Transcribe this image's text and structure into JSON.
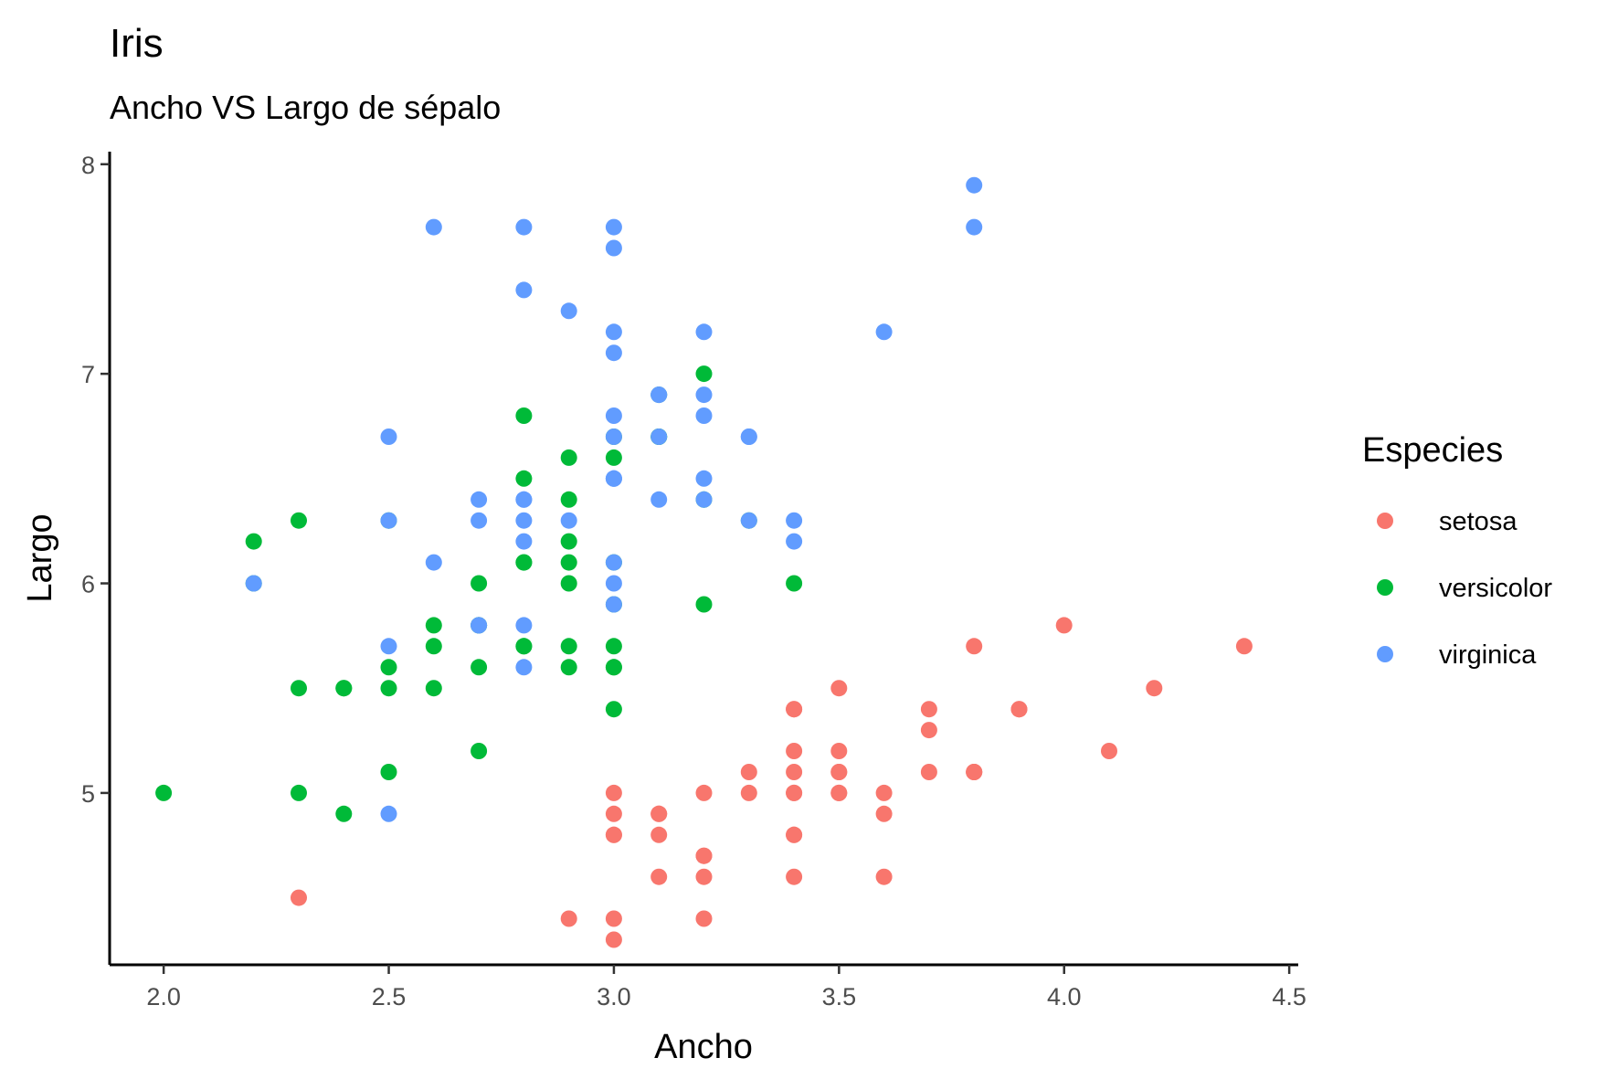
{
  "chart_data": {
    "type": "scatter",
    "title": "Iris",
    "subtitle": "Ancho VS Largo de sépalo",
    "xlabel": "Ancho",
    "ylabel": "Largo",
    "xlim": [
      1.88,
      4.52
    ],
    "ylim": [
      4.18,
      8.06
    ],
    "x_ticks": [
      {
        "value": 2.0,
        "label": "2.0"
      },
      {
        "value": 2.5,
        "label": "2.5"
      },
      {
        "value": 3.0,
        "label": "3.0"
      },
      {
        "value": 3.5,
        "label": "3.5"
      },
      {
        "value": 4.0,
        "label": "4.0"
      },
      {
        "value": 4.5,
        "label": "4.5"
      }
    ],
    "y_ticks": [
      {
        "value": 5,
        "label": "5"
      },
      {
        "value": 6,
        "label": "6"
      },
      {
        "value": 7,
        "label": "7"
      },
      {
        "value": 8,
        "label": "8"
      }
    ],
    "grid": false,
    "legend": {
      "title": "Especies",
      "placement": "right"
    },
    "series": [
      {
        "name": "setosa",
        "color": "#F8766D",
        "points": [
          [
            3.5,
            5.1
          ],
          [
            3.0,
            4.9
          ],
          [
            3.2,
            4.7
          ],
          [
            3.1,
            4.6
          ],
          [
            3.6,
            5.0
          ],
          [
            3.9,
            5.4
          ],
          [
            3.4,
            4.6
          ],
          [
            3.4,
            5.0
          ],
          [
            2.9,
            4.4
          ],
          [
            3.1,
            4.9
          ],
          [
            3.7,
            5.4
          ],
          [
            3.4,
            4.8
          ],
          [
            3.0,
            4.8
          ],
          [
            3.0,
            4.3
          ],
          [
            4.0,
            5.8
          ],
          [
            4.4,
            5.7
          ],
          [
            3.9,
            5.4
          ],
          [
            3.5,
            5.1
          ],
          [
            3.8,
            5.7
          ],
          [
            3.8,
            5.1
          ],
          [
            3.4,
            5.4
          ],
          [
            3.7,
            5.1
          ],
          [
            3.6,
            4.6
          ],
          [
            3.3,
            5.1
          ],
          [
            3.4,
            4.8
          ],
          [
            3.0,
            5.0
          ],
          [
            3.4,
            5.0
          ],
          [
            3.5,
            5.2
          ],
          [
            3.4,
            5.2
          ],
          [
            3.2,
            4.7
          ],
          [
            3.1,
            4.8
          ],
          [
            3.4,
            5.4
          ],
          [
            4.1,
            5.2
          ],
          [
            4.2,
            5.5
          ],
          [
            3.1,
            4.9
          ],
          [
            3.2,
            5.0
          ],
          [
            3.5,
            5.5
          ],
          [
            3.6,
            4.9
          ],
          [
            3.0,
            4.4
          ],
          [
            3.4,
            5.1
          ],
          [
            3.5,
            5.0
          ],
          [
            2.3,
            4.5
          ],
          [
            3.2,
            4.4
          ],
          [
            3.5,
            5.0
          ],
          [
            3.8,
            5.1
          ],
          [
            3.0,
            4.8
          ],
          [
            3.8,
            5.1
          ],
          [
            3.2,
            4.6
          ],
          [
            3.7,
            5.3
          ],
          [
            3.3,
            5.0
          ]
        ]
      },
      {
        "name": "versicolor",
        "color": "#00BA38",
        "points": [
          [
            3.2,
            7.0
          ],
          [
            3.2,
            6.4
          ],
          [
            3.1,
            6.9
          ],
          [
            2.3,
            5.5
          ],
          [
            2.8,
            6.5
          ],
          [
            2.8,
            5.7
          ],
          [
            3.3,
            6.3
          ],
          [
            2.4,
            4.9
          ],
          [
            2.9,
            6.6
          ],
          [
            2.7,
            5.2
          ],
          [
            2.0,
            5.0
          ],
          [
            3.0,
            5.9
          ],
          [
            2.2,
            6.0
          ],
          [
            2.9,
            6.1
          ],
          [
            2.9,
            5.6
          ],
          [
            3.1,
            6.7
          ],
          [
            3.0,
            5.6
          ],
          [
            2.7,
            5.8
          ],
          [
            2.2,
            6.2
          ],
          [
            2.5,
            5.6
          ],
          [
            3.2,
            5.9
          ],
          [
            2.8,
            6.1
          ],
          [
            2.5,
            6.3
          ],
          [
            2.8,
            6.1
          ],
          [
            2.9,
            6.4
          ],
          [
            3.0,
            6.6
          ],
          [
            2.8,
            6.8
          ],
          [
            3.0,
            6.7
          ],
          [
            2.9,
            6.0
          ],
          [
            2.6,
            5.7
          ],
          [
            2.4,
            5.5
          ],
          [
            2.4,
            5.5
          ],
          [
            2.7,
            5.8
          ],
          [
            2.7,
            6.0
          ],
          [
            3.0,
            5.4
          ],
          [
            3.4,
            6.0
          ],
          [
            3.1,
            6.7
          ],
          [
            2.3,
            6.3
          ],
          [
            3.0,
            5.6
          ],
          [
            2.5,
            5.5
          ],
          [
            2.6,
            5.5
          ],
          [
            3.0,
            6.1
          ],
          [
            2.6,
            5.8
          ],
          [
            2.3,
            5.0
          ],
          [
            2.7,
            5.6
          ],
          [
            3.0,
            5.7
          ],
          [
            2.9,
            5.7
          ],
          [
            2.9,
            6.2
          ],
          [
            2.5,
            5.1
          ],
          [
            2.8,
            5.7
          ]
        ]
      },
      {
        "name": "virginica",
        "color": "#619CFF",
        "points": [
          [
            3.3,
            6.3
          ],
          [
            2.7,
            5.8
          ],
          [
            3.0,
            7.1
          ],
          [
            2.9,
            6.3
          ],
          [
            3.0,
            6.5
          ],
          [
            3.0,
            7.6
          ],
          [
            2.5,
            4.9
          ],
          [
            2.9,
            7.3
          ],
          [
            2.5,
            6.7
          ],
          [
            3.6,
            7.2
          ],
          [
            3.2,
            6.5
          ],
          [
            2.7,
            6.4
          ],
          [
            3.0,
            6.8
          ],
          [
            2.5,
            5.7
          ],
          [
            2.8,
            5.8
          ],
          [
            3.2,
            6.4
          ],
          [
            3.0,
            6.5
          ],
          [
            3.8,
            7.7
          ],
          [
            2.6,
            7.7
          ],
          [
            2.2,
            6.0
          ],
          [
            3.2,
            6.9
          ],
          [
            2.8,
            5.6
          ],
          [
            2.8,
            7.7
          ],
          [
            2.7,
            6.3
          ],
          [
            3.3,
            6.7
          ],
          [
            3.2,
            7.2
          ],
          [
            2.8,
            6.2
          ],
          [
            3.0,
            6.1
          ],
          [
            2.8,
            6.4
          ],
          [
            3.0,
            7.2
          ],
          [
            2.8,
            7.4
          ],
          [
            3.8,
            7.9
          ],
          [
            2.8,
            6.4
          ],
          [
            2.8,
            6.3
          ],
          [
            2.6,
            6.1
          ],
          [
            3.0,
            7.7
          ],
          [
            3.4,
            6.3
          ],
          [
            3.1,
            6.4
          ],
          [
            3.0,
            6.0
          ],
          [
            3.1,
            6.9
          ],
          [
            3.1,
            6.7
          ],
          [
            3.1,
            6.9
          ],
          [
            2.7,
            5.8
          ],
          [
            3.2,
            6.8
          ],
          [
            3.3,
            6.7
          ],
          [
            3.0,
            6.7
          ],
          [
            2.5,
            6.3
          ],
          [
            3.0,
            6.5
          ],
          [
            3.4,
            6.2
          ],
          [
            3.0,
            5.9
          ]
        ]
      }
    ]
  }
}
